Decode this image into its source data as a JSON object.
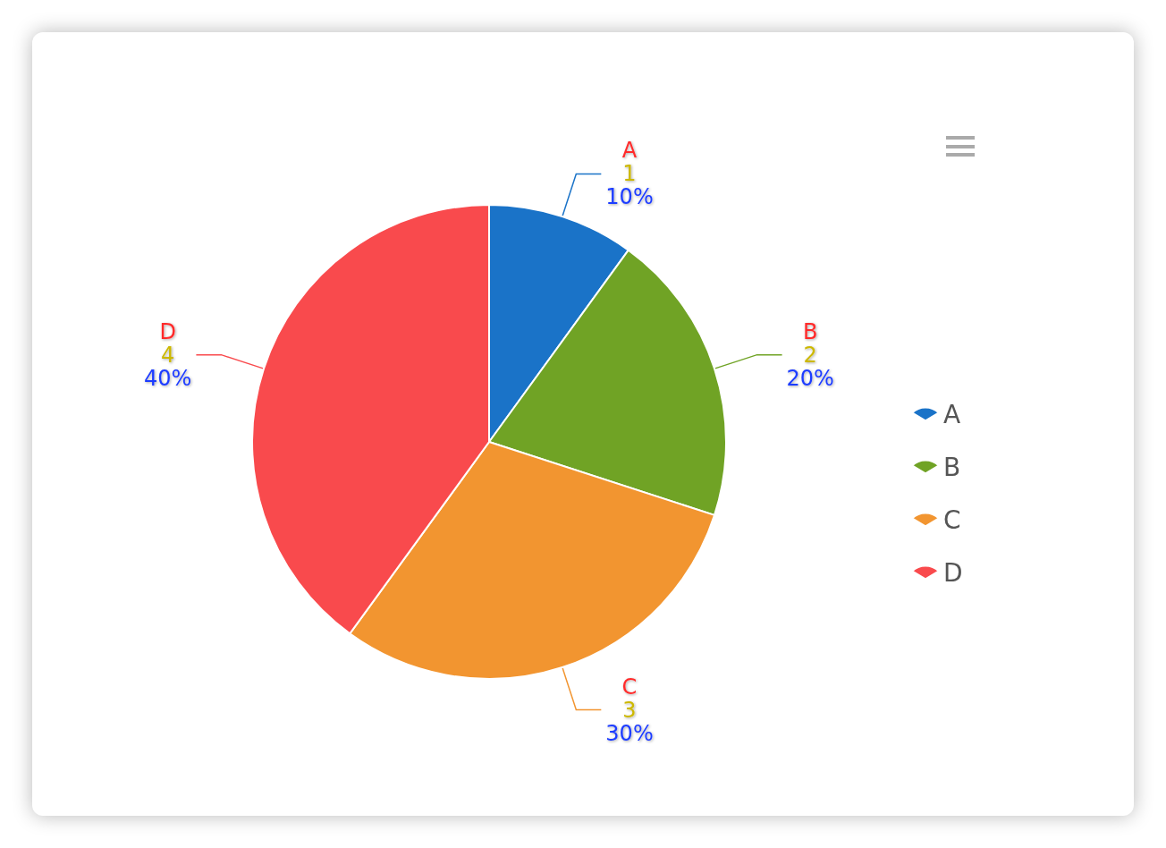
{
  "chart_data": {
    "type": "pie",
    "categories": [
      "A",
      "B",
      "C",
      "D"
    ],
    "values": [
      1,
      2,
      3,
      4
    ],
    "colors": [
      "#1a73c8",
      "#70a325",
      "#f29530",
      "#f94a4d"
    ],
    "data_labels": true,
    "annotations": [
      "10%",
      "20%",
      "30%",
      "40%"
    ],
    "legend": "right"
  }
}
